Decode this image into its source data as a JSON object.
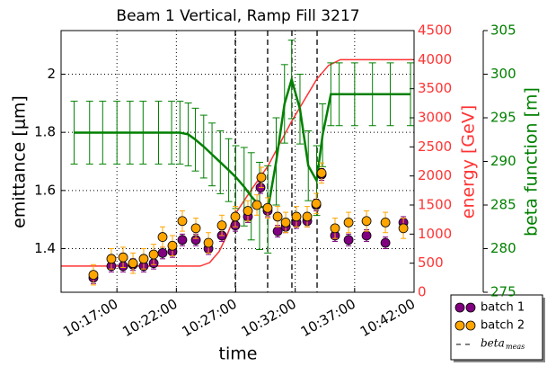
{
  "chart_data": {
    "type": "scatter",
    "title": "Beam 1 Vertical, Ramp Fill 3217",
    "x_label": "time",
    "y_label": "emittance [μm]",
    "y2_label": "energy [GeV]",
    "y3_label": "beta function [m]",
    "xlim": [
      12.3,
      42.0
    ],
    "xticks": [
      {
        "value": 17,
        "label": "10:17:00"
      },
      {
        "value": 22,
        "label": "10:22:00"
      },
      {
        "value": 27,
        "label": "10:27:00"
      },
      {
        "value": 32,
        "label": "10:32:00"
      },
      {
        "value": 37,
        "label": "10:37:00"
      },
      {
        "value": 42,
        "label": "10:42:00"
      }
    ],
    "ylim": [
      1.25,
      2.15
    ],
    "yticks": [
      1.4,
      1.6,
      1.8,
      2.0
    ],
    "y2lim": [
      0,
      4500
    ],
    "y2ticks": [
      0,
      500,
      1000,
      1500,
      2000,
      2500,
      3000,
      3500,
      4000,
      4500
    ],
    "y3lim": [
      275,
      305
    ],
    "y3ticks": [
      275,
      280,
      285,
      290,
      295,
      300,
      305
    ],
    "grid": true,
    "legend": "outside lower right",
    "series": [
      {
        "name": "batch 1",
        "color": "#800080",
        "x": [
          15.02,
          16.53,
          17.52,
          18.35,
          19.25,
          20.09,
          20.84,
          21.67,
          22.5,
          23.64,
          24.7,
          25.83,
          26.96,
          28.02,
          29.08,
          29.68,
          30.52,
          31.2,
          32.1,
          33.01,
          33.77,
          34.22,
          35.35,
          36.49,
          38.0,
          39.59,
          41.1
        ],
        "values": [
          1.3,
          1.34,
          1.34,
          1.345,
          1.34,
          1.35,
          1.385,
          1.39,
          1.43,
          1.43,
          1.4,
          1.445,
          1.48,
          1.51,
          1.61,
          1.53,
          1.46,
          1.475,
          1.49,
          1.495,
          1.55,
          1.655,
          1.445,
          1.43,
          1.445,
          1.42,
          1.49
        ],
        "errors": [
          0.02,
          0.02,
          0.02,
          0.02,
          0.02,
          0.02,
          0.02,
          0.02,
          0.02,
          0.02,
          0.02,
          0.02,
          0.02,
          0.02,
          0.02,
          0.02,
          0.02,
          0.02,
          0.02,
          0.02,
          0.02,
          0.02,
          0.02,
          0.02,
          0.02,
          0.02,
          0.02
        ]
      },
      {
        "name": "batch 2",
        "color": "#ffa500",
        "x": [
          15.02,
          16.53,
          17.52,
          18.35,
          19.25,
          20.09,
          20.84,
          21.67,
          22.5,
          23.64,
          24.7,
          25.83,
          26.96,
          28.02,
          28.78,
          29.15,
          29.68,
          30.52,
          31.2,
          32.1,
          33.01,
          33.77,
          34.22,
          35.35,
          36.49,
          38.0,
          39.59,
          41.1
        ],
        "values": [
          1.31,
          1.365,
          1.37,
          1.35,
          1.365,
          1.38,
          1.44,
          1.41,
          1.495,
          1.47,
          1.42,
          1.48,
          1.51,
          1.53,
          1.55,
          1.645,
          1.54,
          1.51,
          1.49,
          1.51,
          1.51,
          1.555,
          1.66,
          1.47,
          1.49,
          1.495,
          1.49,
          1.47
        ],
        "errors": [
          0.035,
          0.035,
          0.035,
          0.035,
          0.035,
          0.035,
          0.035,
          0.035,
          0.035,
          0.035,
          0.035,
          0.035,
          0.035,
          0.035,
          0.035,
          0.035,
          0.035,
          0.035,
          0.035,
          0.035,
          0.035,
          0.035,
          0.035,
          0.035,
          0.035,
          0.035,
          0.035,
          0.035
        ]
      }
    ],
    "energy": {
      "color": "#ff3333",
      "axis": "y2",
      "x": [
        12.3,
        24.0,
        24.8,
        25.6,
        26.3,
        27.0,
        28.3,
        29.7,
        31.7,
        33.8,
        34.8,
        35.8,
        41.9
      ],
      "values": [
        450,
        450,
        510,
        700,
        1000,
        1360,
        1760,
        2170,
        2940,
        3660,
        3900,
        4000,
        4000
      ]
    },
    "beta_function": {
      "color": "#008000",
      "axis": "y3",
      "x": [
        13.4,
        14.7,
        15.8,
        17.0,
        18.1,
        19.2,
        20.5,
        21.6,
        22.3,
        23.0,
        23.6,
        24.3,
        25.0,
        25.7,
        26.4,
        27.0,
        27.7,
        28.3,
        29.0,
        29.7,
        30.4,
        31.1,
        31.7,
        32.4,
        33.1,
        33.8,
        34.3,
        35.0,
        35.7,
        37.0,
        38.5,
        40.0,
        41.7
      ],
      "values": [
        293.3,
        293.3,
        293.3,
        293.3,
        293.3,
        293.3,
        293.3,
        293.3,
        293.3,
        293.1,
        292.5,
        291.7,
        290.8,
        289.9,
        289.0,
        288.2,
        287.1,
        286.0,
        284.9,
        284.5,
        290.0,
        296.6,
        299.4,
        296.0,
        289.5,
        287.8,
        293.0,
        297.7,
        297.7,
        297.7,
        297.7,
        297.7,
        297.7
      ],
      "errors": [
        3.6,
        3.6,
        3.6,
        3.6,
        3.6,
        3.6,
        3.6,
        3.6,
        3.6,
        3.6,
        3.6,
        3.6,
        3.6,
        3.6,
        3.6,
        3.6,
        4.5,
        5,
        5,
        5,
        5,
        4.5,
        4.5,
        4,
        4,
        4,
        3.6,
        3.6,
        3.6,
        3.6,
        3.6,
        3.6,
        3.6
      ]
    },
    "beta_meas": {
      "name": "beta",
      "subscript": "meas",
      "x": [
        26.96,
        29.68,
        31.72,
        33.84
      ]
    }
  }
}
